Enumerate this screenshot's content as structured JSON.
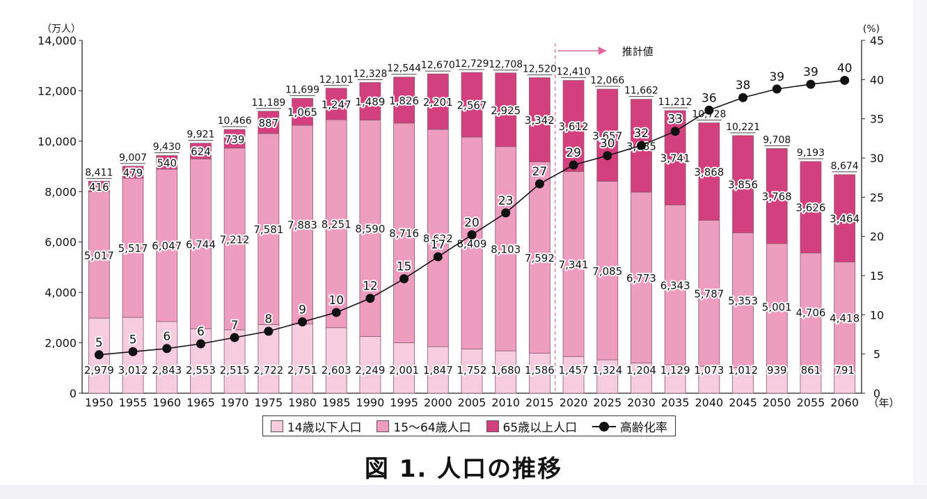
{
  "caption": "図 1.  人口の推移",
  "legend": {
    "young": "14歳以下人口",
    "working": "15～64歳人口",
    "elderly": "65歳以上人口",
    "rate": "高齢化率"
  },
  "colors": {
    "young": "#f6cddf",
    "working": "#ee9cc0",
    "elderly": "#d4407e",
    "rate_line": "#111111"
  },
  "chart_data": {
    "type": "bar",
    "stacked": true,
    "title": "図 1.  人口の推移",
    "left_axis_unit": "（万人）",
    "right_axis_unit": "(%)",
    "x_unit": "（年）",
    "projection_label": "推計値",
    "projection_start": "2020",
    "left_ylim": [
      0,
      14000
    ],
    "left_ticks": [
      "0",
      "2,000",
      "4,000",
      "6,000",
      "8,000",
      "10,000",
      "12,000",
      "14,000"
    ],
    "right_ylim": [
      0,
      45
    ],
    "right_ticks": [
      "0",
      "5",
      "10",
      "15",
      "20",
      "25",
      "30",
      "35",
      "40",
      "45"
    ],
    "categories": [
      "1950",
      "1955",
      "1960",
      "1965",
      "1970",
      "1975",
      "1980",
      "1985",
      "1990",
      "1995",
      "2000",
      "2005",
      "2010",
      "2015",
      "2020",
      "2025",
      "2030",
      "2035",
      "2040",
      "2045",
      "2050",
      "2055",
      "2060"
    ],
    "series": [
      {
        "name": "14歳以下人口",
        "values": [
          2979,
          3012,
          2843,
          2553,
          2515,
          2722,
          2751,
          2603,
          2249,
          2001,
          1847,
          1752,
          1680,
          1586,
          1457,
          1324,
          1204,
          1129,
          1073,
          1012,
          939,
          861,
          791
        ],
        "labels": [
          "2,979",
          "3,012",
          "2,843",
          "2,553",
          "2,515",
          "2,722",
          "2,751",
          "2,603",
          "2,249",
          "2,001",
          "1,847",
          "1,752",
          "1,680",
          "1,586",
          "1,457",
          "1,324",
          "1,204",
          "1,129",
          "1,073",
          "1,012",
          "939",
          "861",
          "791"
        ]
      },
      {
        "name": "15～64歳人口",
        "values": [
          5017,
          5517,
          6047,
          6744,
          7212,
          7581,
          7883,
          8251,
          8590,
          8716,
          8622,
          8409,
          8103,
          7592,
          7341,
          7085,
          6773,
          6343,
          5787,
          5353,
          5001,
          4706,
          4418
        ],
        "labels": [
          "5,017",
          "5,517",
          "6,047",
          "6,744",
          "7,212",
          "7,581",
          "7,883",
          "8,251",
          "8,590",
          "8,716",
          "8,622",
          "8,409",
          "8,103",
          "7,592",
          "7,341",
          "7,085",
          "6,773",
          "6,343",
          "5,787",
          "5,353",
          "5,001",
          "4,706",
          "4,418"
        ]
      },
      {
        "name": "65歳以上人口",
        "values": [
          416,
          479,
          540,
          624,
          739,
          887,
          1065,
          1247,
          1489,
          1826,
          2201,
          2567,
          2925,
          3342,
          3612,
          3657,
          3685,
          3741,
          3868,
          3856,
          3768,
          3626,
          3464
        ],
        "labels": [
          "416",
          "479",
          "540",
          "624",
          "739",
          "887",
          "1,065",
          "1,247",
          "1,489",
          "1,826",
          "2,201",
          "2,567",
          "2,925",
          "3,342",
          "3,612",
          "3,657",
          "3,685",
          "3,741",
          "3,868",
          "3,856",
          "3,768",
          "3,626",
          "3,464"
        ]
      }
    ],
    "totals": [
      8411,
      9007,
      9430,
      9921,
      10466,
      11189,
      11699,
      12101,
      12328,
      12544,
      12670,
      12729,
      12708,
      12520,
      12410,
      12066,
      11662,
      11212,
      10728,
      10221,
      9708,
      9193,
      8674
    ],
    "total_labels": [
      "8,411",
      "9,007",
      "9,430",
      "9,921",
      "10,466",
      "11,189",
      "11,699",
      "12,101",
      "12,328",
      "12,544",
      "12,670",
      "12,729",
      "12,708",
      "12,520",
      "12,410",
      "12,066",
      "11,662",
      "11,212",
      "10,728",
      "10,221",
      "9,708",
      "9,193",
      "8,674"
    ],
    "rate": {
      "name": "高齢化率",
      "values": [
        4.9,
        5.3,
        5.7,
        6.3,
        7.1,
        7.9,
        9.1,
        10.3,
        12.1,
        14.6,
        17.4,
        20.2,
        23.0,
        26.7,
        29.1,
        30.3,
        31.6,
        33.4,
        36.1,
        37.7,
        38.8,
        39.4,
        39.9
      ],
      "labels": [
        "5",
        "5",
        "6",
        "6",
        "7",
        "8",
        "9",
        "10",
        "12",
        "15",
        "17",
        "20",
        "23",
        "27",
        "29",
        "30",
        "32",
        "33",
        "36",
        "38",
        "39",
        "39",
        "40"
      ]
    },
    "legend_position": "bottom"
  }
}
